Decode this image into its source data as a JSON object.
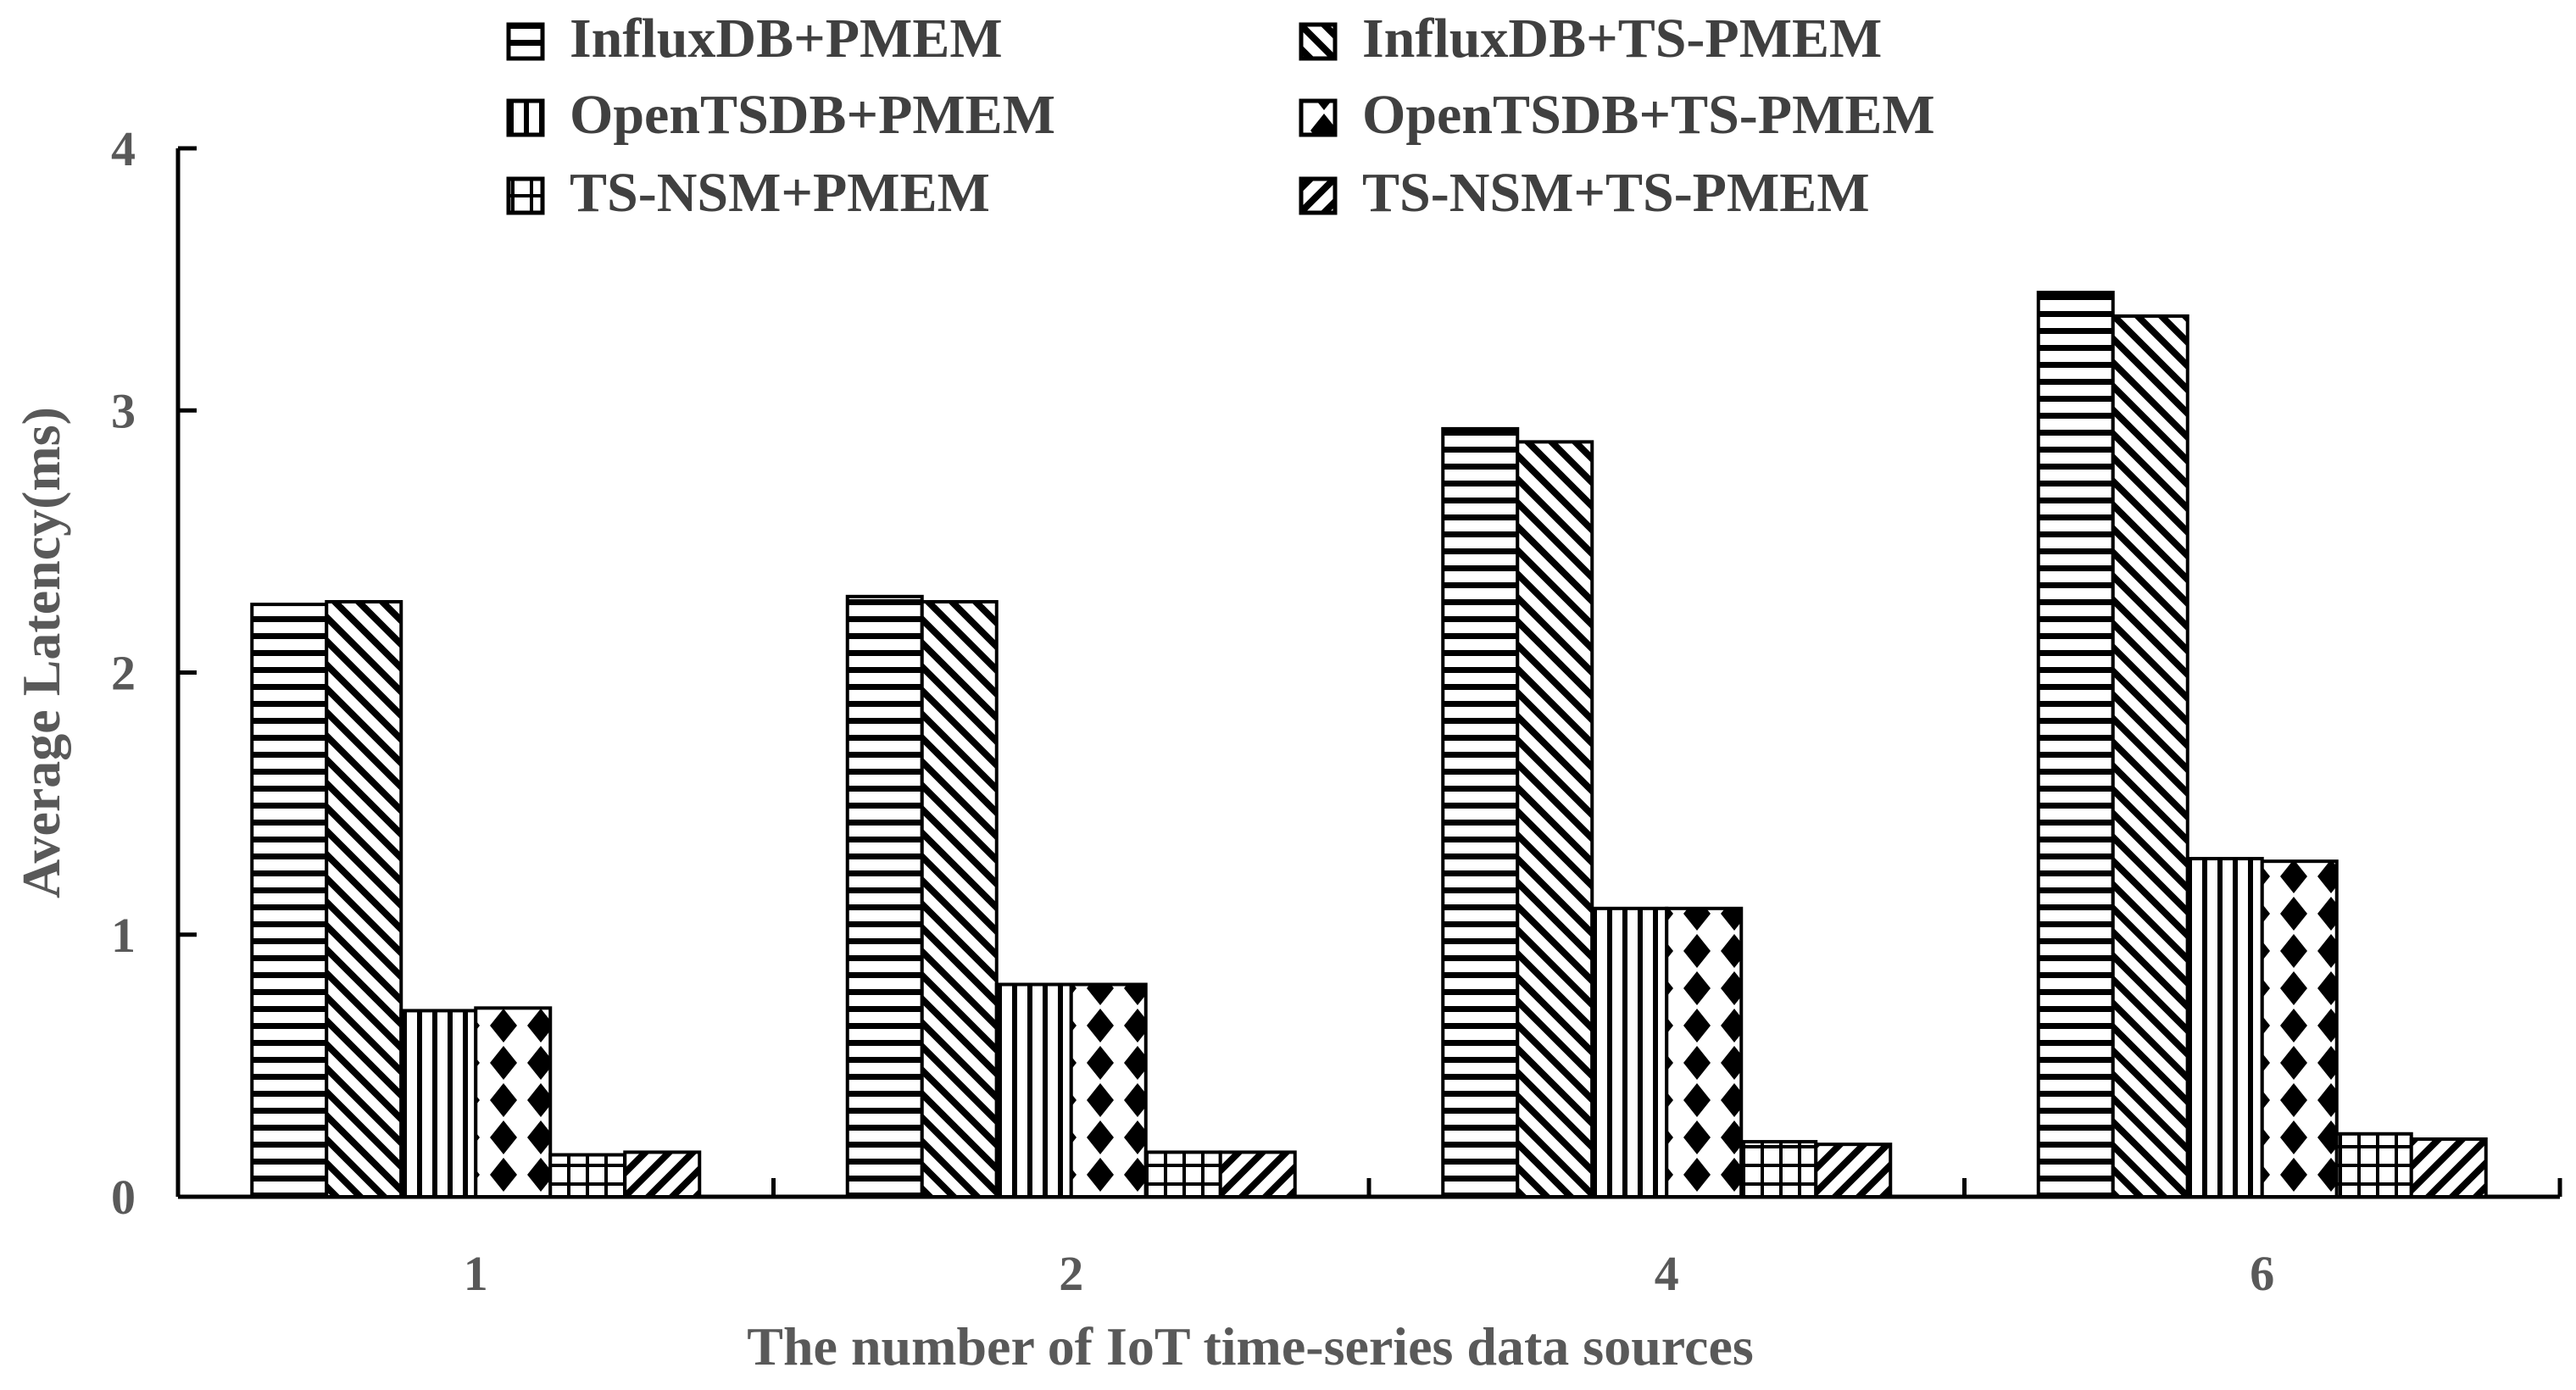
{
  "chart_data": {
    "type": "bar",
    "title": "",
    "xlabel": "The number of IoT time-series data sources",
    "ylabel": "Average Latency(ms)",
    "categories": [
      "1",
      "2",
      "4",
      "6"
    ],
    "ylim": [
      0,
      4
    ],
    "yticks": [
      "0",
      "1",
      "2",
      "3",
      "4"
    ],
    "grid": false,
    "legend_position": "top",
    "series": [
      {
        "name": "InfluxDB+PMEM",
        "pattern": "horizontal-lines",
        "values": [
          2.26,
          2.29,
          2.93,
          3.45
        ]
      },
      {
        "name": "InfluxDB+TS-PMEM",
        "pattern": "diagonal-back",
        "values": [
          2.27,
          2.27,
          2.88,
          3.36
        ]
      },
      {
        "name": "OpenTSDB+PMEM",
        "pattern": "vertical-lines",
        "values": [
          0.71,
          0.81,
          1.1,
          1.29
        ]
      },
      {
        "name": "OpenTSDB+TS-PMEM",
        "pattern": "diamonds",
        "values": [
          0.72,
          0.81,
          1.1,
          1.28
        ]
      },
      {
        "name": "TS-NSM+PMEM",
        "pattern": "grid",
        "values": [
          0.16,
          0.17,
          0.21,
          0.24
        ]
      },
      {
        "name": "TS-NSM+TS-PMEM",
        "pattern": "diagonal-forward",
        "values": [
          0.17,
          0.17,
          0.2,
          0.22
        ]
      }
    ],
    "colors": {
      "axis": "#000000",
      "text": "#595959",
      "bar_stroke": "#000000",
      "bar_fill": "#ffffff"
    }
  }
}
